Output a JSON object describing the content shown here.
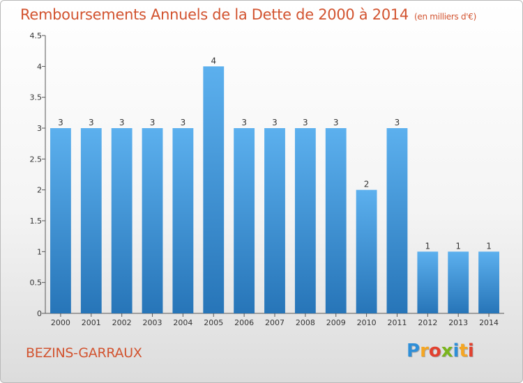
{
  "header": {
    "title": "Remboursements Annuels de la Dette de 2000 à 2014",
    "unit": "(en milliers d'€)"
  },
  "commune": "BEZINS-GARRAUX",
  "logo": {
    "letters": [
      "P",
      "r",
      "o",
      "x",
      "i",
      "t",
      "i"
    ],
    "colors": [
      "#2f8fd8",
      "#f5a623",
      "#e2412f",
      "#7ab51d",
      "#2f8fd8",
      "#f5a623",
      "#e2412f"
    ]
  },
  "chart_data": {
    "type": "bar",
    "categories": [
      "2000",
      "2001",
      "2002",
      "2003",
      "2004",
      "2005",
      "2006",
      "2007",
      "2008",
      "2009",
      "2010",
      "2011",
      "2012",
      "2013",
      "2014"
    ],
    "values": [
      3,
      3,
      3,
      3,
      3,
      4,
      3,
      3,
      3,
      3,
      2,
      3,
      1,
      1,
      1
    ],
    "data_labels": [
      "3",
      "3",
      "3",
      "3",
      "3",
      "4",
      "3",
      "3",
      "3",
      "3",
      "2",
      "3",
      "1",
      "1",
      "1"
    ],
    "title": "Remboursements Annuels de la Dette de 2000 à 2014",
    "ylabel": "",
    "xlabel": "",
    "ylim": [
      0,
      4.5
    ],
    "yticks": [
      0,
      0.5,
      1,
      1.5,
      2,
      2.5,
      3,
      3.5,
      4,
      4.5
    ],
    "ytick_labels": [
      "0",
      "0.5",
      "1",
      "1.5",
      "2",
      "2.5",
      "3",
      "3.5",
      "4",
      "4.5"
    ],
    "grid": false,
    "legend": "none",
    "bar_color": "#3f97da"
  }
}
